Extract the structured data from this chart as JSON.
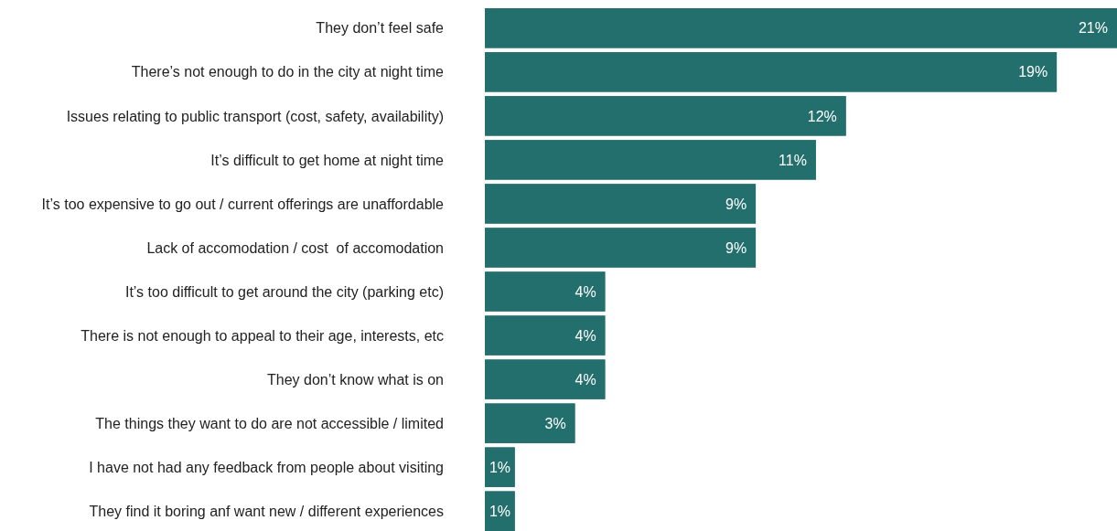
{
  "chart_data": {
    "type": "bar",
    "orientation": "horizontal",
    "color": "#236f6e",
    "categories": [
      "They don’t feel safe",
      "There’s not enough to do in the city at night time",
      "Issues relating to public transport (cost, safety, availability)",
      "It’s difficult to get home at night time",
      "It’s too expensive to go out / current offerings are unaffordable",
      "Lack of accomodation / cost  of accomodation",
      "It’s too difficult to get around the city (parking etc)",
      "There is not enough to appeal to their age, interests, etc",
      "They don’t know what is on",
      "The things they want to do are not accessible / limited",
      "I have not had any feedback from people about visiting",
      "They find it boring anf want new / different experiences"
    ],
    "values": [
      21,
      19,
      12,
      11,
      9,
      9,
      4,
      4,
      4,
      3,
      1,
      1
    ],
    "value_labels": [
      "21%",
      "19%",
      "12%",
      "11%",
      "9%",
      "9%",
      "4%",
      "4%",
      "4%",
      "3%",
      "1%",
      "1%"
    ]
  }
}
